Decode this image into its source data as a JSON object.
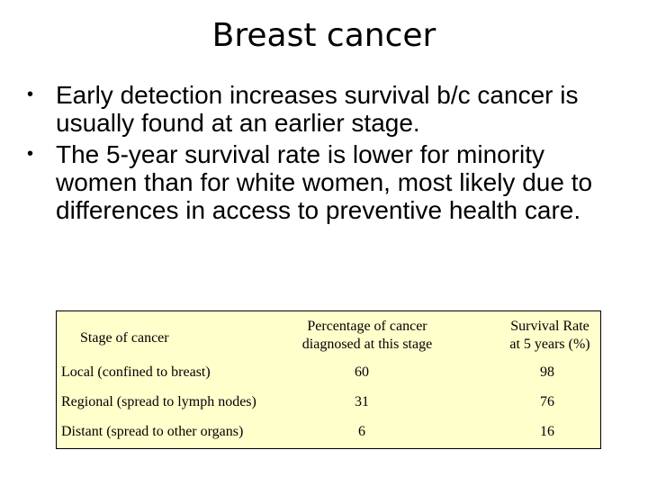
{
  "slide": {
    "title": "Breast cancer",
    "bullets": [
      "Early detection increases survival b/c cancer is usually found at an earlier stage.",
      "The 5-year survival rate is lower for minority women than for white women, most likely due to differences in access to preventive health care."
    ],
    "bullet_symbol": "•"
  },
  "table": {
    "background": "#ffffcc",
    "headers": {
      "stage": "Stage of cancer",
      "percentage_line1": "Percentage of cancer",
      "percentage_line2": "diagnosed at this stage",
      "survival_line1": "Survival Rate",
      "survival_line2": "at 5 years (%)"
    },
    "rows": [
      {
        "stage": "Local (confined to breast)",
        "percentage": "60",
        "survival": "98"
      },
      {
        "stage": "Regional (spread to lymph nodes)",
        "percentage": "31",
        "survival": "76"
      },
      {
        "stage": "Distant (spread to other organs)",
        "percentage": "6",
        "survival": "16"
      }
    ]
  }
}
